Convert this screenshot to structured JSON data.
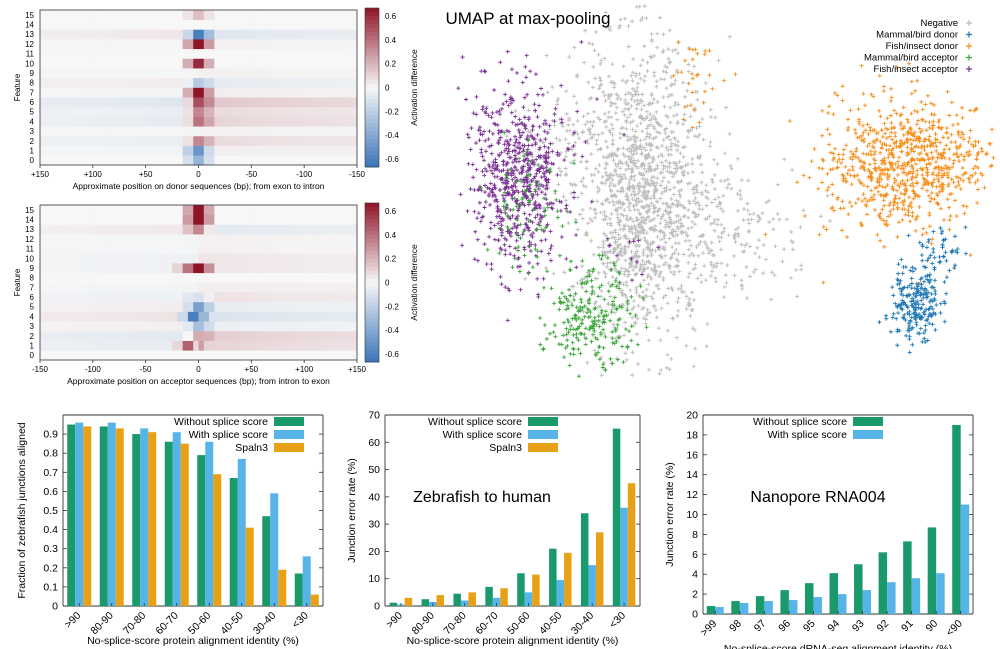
{
  "colors": {
    "negative": "#bdbdbd",
    "mammal_donor": "#1f78b4",
    "fish_donor": "#f5901e",
    "mammal_acceptor": "#3aa639",
    "fish_acceptor": "#7b3294",
    "without": "#1a9a6a",
    "with": "#56b4e9",
    "spaln": "#e6a117",
    "heat_neg": "#3a74b8",
    "heat_pos": "#8e1528"
  },
  "chart_data": [
    {
      "id": "heatmap-donor",
      "type": "heatmap",
      "ylabel": "Feature",
      "xlabel": "Approximate position on donor sequences (bp); from exon to intron",
      "xticks": [
        "+150",
        "+100",
        "+50",
        "0",
        "-50",
        "-100",
        "-150"
      ],
      "features": [
        "0",
        "1",
        "2",
        "3",
        "4",
        "5",
        "6",
        "7",
        "8",
        "9",
        "10",
        "11",
        "12",
        "13",
        "14",
        "15"
      ],
      "colorbar_label": "Activation difference",
      "colorbar_ticks": [
        "0.6",
        "0.4",
        "0.2",
        "0",
        "-0.2",
        "-0.4",
        "-0.6"
      ],
      "range": [
        -0.6,
        0.6
      ],
      "rows": [
        {
          "feature": 0,
          "base": 0.0,
          "peaks": [
            {
              "pos": 0,
              "v": -0.3
            }
          ]
        },
        {
          "feature": 1,
          "base": 0.03,
          "peaks": [
            {
              "pos": 0,
              "v": -0.45
            }
          ]
        },
        {
          "feature": 2,
          "base": 0.08,
          "peaks": [
            {
              "pos": 0,
              "v": 0.3
            }
          ]
        },
        {
          "feature": 3,
          "base": 0.02,
          "peaks": []
        },
        {
          "feature": 4,
          "base": 0.1,
          "peaks": [
            {
              "pos": 0,
              "v": 0.35
            }
          ]
        },
        {
          "feature": 5,
          "base": 0.08,
          "peaks": [
            {
              "pos": 0,
              "v": 0.3
            }
          ]
        },
        {
          "feature": 6,
          "base": 0.14,
          "peaks": [
            {
              "pos": 0,
              "v": 0.45
            }
          ]
        },
        {
          "feature": 7,
          "base": 0.03,
          "peaks": [
            {
              "pos": 0,
              "v": 0.6
            }
          ]
        },
        {
          "feature": 8,
          "base": -0.06,
          "peaks": [
            {
              "pos": 0,
              "v": -0.2
            }
          ]
        },
        {
          "feature": 9,
          "base": 0.02,
          "peaks": []
        },
        {
          "feature": 10,
          "base": 0.0,
          "peaks": [
            {
              "pos": 0,
              "v": 0.55
            }
          ]
        },
        {
          "feature": 11,
          "base": 0.0,
          "peaks": []
        },
        {
          "feature": 12,
          "base": 0.02,
          "peaks": [
            {
              "pos": 0,
              "v": 0.65
            }
          ]
        },
        {
          "feature": 13,
          "base": -0.08,
          "peaks": [
            {
              "pos": 0,
              "v": -0.55
            }
          ]
        },
        {
          "feature": 14,
          "base": 0.0,
          "peaks": []
        },
        {
          "feature": 15,
          "base": 0.0,
          "peaks": [
            {
              "pos": 0,
              "v": 0.15
            }
          ]
        }
      ]
    },
    {
      "id": "heatmap-acceptor",
      "type": "heatmap",
      "ylabel": "Feature",
      "xlabel": "Approximate position on acceptor sequences (bp); from intron to exon",
      "xticks": [
        "-150",
        "-100",
        "-50",
        "0",
        "+50",
        "+100",
        "+150"
      ],
      "features": [
        "0",
        "1",
        "2",
        "3",
        "4",
        "5",
        "6",
        "7",
        "8",
        "9",
        "10",
        "11",
        "12",
        "13",
        "14",
        "15"
      ],
      "colorbar_label": "Activation difference",
      "colorbar_ticks": [
        "0.6",
        "0.4",
        "0.2",
        "0",
        "-0.2",
        "-0.4",
        "-0.6"
      ],
      "range": [
        -0.6,
        0.6
      ],
      "rows": [
        {
          "feature": 0,
          "base": 0.0,
          "peaks": []
        },
        {
          "feature": 1,
          "base": 0.1,
          "peaks": [
            {
              "pos": -10,
              "v": 0.4
            }
          ]
        },
        {
          "feature": 2,
          "base": 0.12,
          "peaks": [
            {
              "pos": 0,
              "v": 0.2
            }
          ]
        },
        {
          "feature": 3,
          "base": -0.04,
          "peaks": [
            {
              "pos": 0,
              "v": -0.25
            }
          ]
        },
        {
          "feature": 4,
          "base": -0.1,
          "peaks": [
            {
              "pos": -5,
              "v": -0.55
            }
          ]
        },
        {
          "feature": 5,
          "base": -0.05,
          "peaks": [
            {
              "pos": 0,
              "v": -0.4
            }
          ]
        },
        {
          "feature": 6,
          "base": 0.06,
          "peaks": [
            {
              "pos": 0,
              "v": -0.1
            }
          ]
        },
        {
          "feature": 7,
          "base": 0.03,
          "peaks": []
        },
        {
          "feature": 8,
          "base": 0.0,
          "peaks": []
        },
        {
          "feature": 9,
          "base": 0.05,
          "peaks": [
            {
              "pos": 0,
              "v": 0.65
            },
            {
              "pos": -10,
              "v": 0.35
            }
          ]
        },
        {
          "feature": 10,
          "base": 0.05,
          "peaks": []
        },
        {
          "feature": 11,
          "base": 0.02,
          "peaks": []
        },
        {
          "feature": 12,
          "base": 0.02,
          "peaks": []
        },
        {
          "feature": 13,
          "base": -0.07,
          "peaks": [
            {
              "pos": 0,
              "v": 0.3
            }
          ]
        },
        {
          "feature": 14,
          "base": 0.0,
          "peaks": [
            {
              "pos": 0,
              "v": 0.7
            }
          ]
        },
        {
          "feature": 15,
          "base": 0.0,
          "peaks": [
            {
              "pos": 0,
              "v": 0.6
            }
          ]
        }
      ]
    },
    {
      "id": "umap",
      "type": "scatter",
      "title": "UMAP at max-pooling",
      "legend_position": "top-right",
      "series": [
        {
          "name": "Negative",
          "color_key": "negative",
          "clusters": [
            [
              640,
              190,
              60,
              140,
              1400
            ],
            [
              720,
              230,
              70,
              60,
              200
            ],
            [
              560,
              140,
              40,
              40,
              60
            ]
          ]
        },
        {
          "name": "Mammal/bird donor",
          "color_key": "mammal_donor",
          "clusters": [
            [
              915,
              305,
              22,
              35,
              220
            ],
            [
              940,
              250,
              20,
              30,
              50
            ]
          ]
        },
        {
          "name": "Fish/insect donor",
          "color_key": "fish_donor",
          "clusters": [
            [
              905,
              165,
              75,
              60,
              800
            ],
            [
              700,
              80,
              25,
              40,
              30
            ]
          ]
        },
        {
          "name": "Mammal/bird acceptor",
          "color_key": "mammal_acceptor",
          "clusters": [
            [
              590,
              315,
              40,
              45,
              230
            ],
            [
              530,
              210,
              35,
              60,
              80
            ]
          ]
        },
        {
          "name": "Fish/insect acceptor",
          "color_key": "fish_acceptor",
          "clusters": [
            [
              518,
              175,
              45,
              80,
              650
            ],
            [
              630,
              250,
              20,
              20,
              12
            ]
          ]
        }
      ]
    },
    {
      "id": "bar-fraction",
      "type": "bar",
      "ylabel": "Fraction of zebrafish junctions aligned",
      "xlabel": "No-splice-score protein alignment identity (%)",
      "categories": [
        ">90",
        "80-90",
        "70-80",
        "60-70",
        "50-60",
        "40-50",
        "30-40",
        "<30"
      ],
      "ylim": [
        0,
        1.0
      ],
      "yticks": [
        0,
        0.1,
        0.2,
        0.3,
        0.4,
        0.5,
        0.6,
        0.7,
        0.8,
        0.9
      ],
      "series": [
        {
          "name": "Without splice score",
          "color_key": "without",
          "values": [
            0.95,
            0.94,
            0.9,
            0.86,
            0.79,
            0.67,
            0.47,
            0.17
          ]
        },
        {
          "name": "With splice score",
          "color_key": "with",
          "values": [
            0.96,
            0.96,
            0.93,
            0.91,
            0.86,
            0.77,
            0.59,
            0.26
          ]
        },
        {
          "name": "Spaln3",
          "color_key": "spaln",
          "values": [
            0.94,
            0.93,
            0.91,
            0.85,
            0.69,
            0.41,
            0.19,
            0.06
          ]
        }
      ]
    },
    {
      "id": "bar-zebrafish",
      "type": "bar",
      "title": "Zebrafish to human",
      "ylabel": "Junction error rate (%)",
      "xlabel": "No-splice-score protein alignment identity (%)",
      "categories": [
        ">90",
        "80-90",
        "70-80",
        "60-70",
        "50-60",
        "40-50",
        "30-40",
        "<30"
      ],
      "ylim": [
        0,
        70
      ],
      "yticks": [
        0,
        10,
        20,
        30,
        40,
        50,
        60,
        70
      ],
      "series": [
        {
          "name": "Without splice score",
          "color_key": "without",
          "values": [
            1.2,
            2.5,
            4.5,
            7,
            12,
            21,
            34,
            65
          ]
        },
        {
          "name": "With splice score",
          "color_key": "with",
          "values": [
            0.6,
            1.5,
            2,
            3,
            5,
            9.5,
            15,
            36
          ]
        },
        {
          "name": "Spaln3",
          "color_key": "spaln",
          "values": [
            3,
            4,
            5,
            6.5,
            11.5,
            19.5,
            27,
            45
          ]
        }
      ]
    },
    {
      "id": "bar-nanopore",
      "type": "bar",
      "title": "Nanopore RNA004",
      "ylabel": "Junction error rate (%)",
      "xlabel": "No-splice-score dRNA-seq alignment identity (%)",
      "categories": [
        ">99",
        "98",
        "97",
        "96",
        "95",
        "94",
        "93",
        "92",
        "91",
        "90",
        "<90"
      ],
      "ylim": [
        0,
        20
      ],
      "yticks": [
        0,
        2,
        4,
        6,
        8,
        10,
        12,
        14,
        16,
        18,
        20
      ],
      "series": [
        {
          "name": "Without splice score",
          "color_key": "without",
          "values": [
            0.8,
            1.3,
            1.8,
            2.4,
            3.1,
            4.1,
            5.0,
            6.2,
            7.3,
            8.7,
            19.0
          ]
        },
        {
          "name": "With splice score",
          "color_key": "with",
          "values": [
            0.7,
            1.1,
            1.3,
            1.4,
            1.7,
            2.0,
            2.4,
            3.2,
            3.6,
            4.1,
            11.0
          ]
        }
      ]
    }
  ]
}
